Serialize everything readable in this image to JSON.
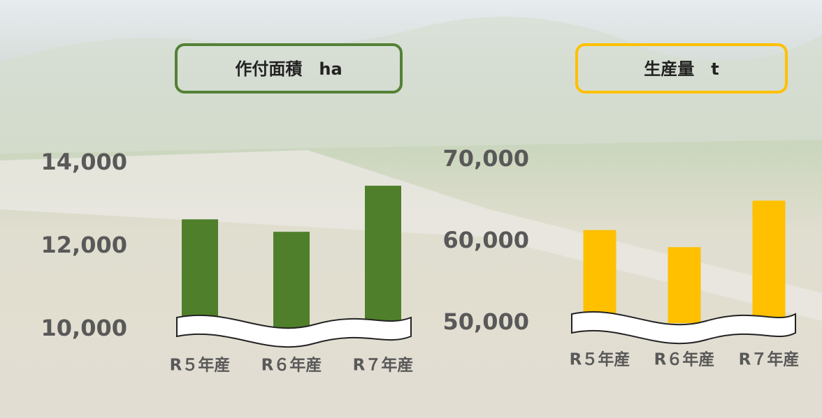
{
  "chart_data": [
    {
      "type": "bar",
      "title": "作付面積　ha",
      "categories": [
        "R５年産",
        "R６年産",
        "R７年産"
      ],
      "values": [
        12650,
        12350,
        13460
      ],
      "color": "#4f7f2a",
      "border_color": "#538135",
      "ylim": [
        10000,
        14000
      ],
      "yticks": [
        {
          "value": 10000,
          "label": "10,000"
        },
        {
          "value": 12000,
          "label": "12,000"
        },
        {
          "value": 14000,
          "label": "14,000"
        }
      ],
      "grid": false
    },
    {
      "type": "bar",
      "title": "生産量　t",
      "categories": [
        "R５年産",
        "R６年産",
        "R７年産"
      ],
      "values": [
        61400,
        59300,
        65000
      ],
      "color": "#ffc000",
      "border_color": "#ffc000",
      "ylim": [
        50000,
        70000
      ],
      "yticks": [
        {
          "value": 50000,
          "label": "50,000"
        },
        {
          "value": 60000,
          "label": "60,000"
        },
        {
          "value": 70000,
          "label": "70,000"
        }
      ],
      "grid": false
    }
  ]
}
